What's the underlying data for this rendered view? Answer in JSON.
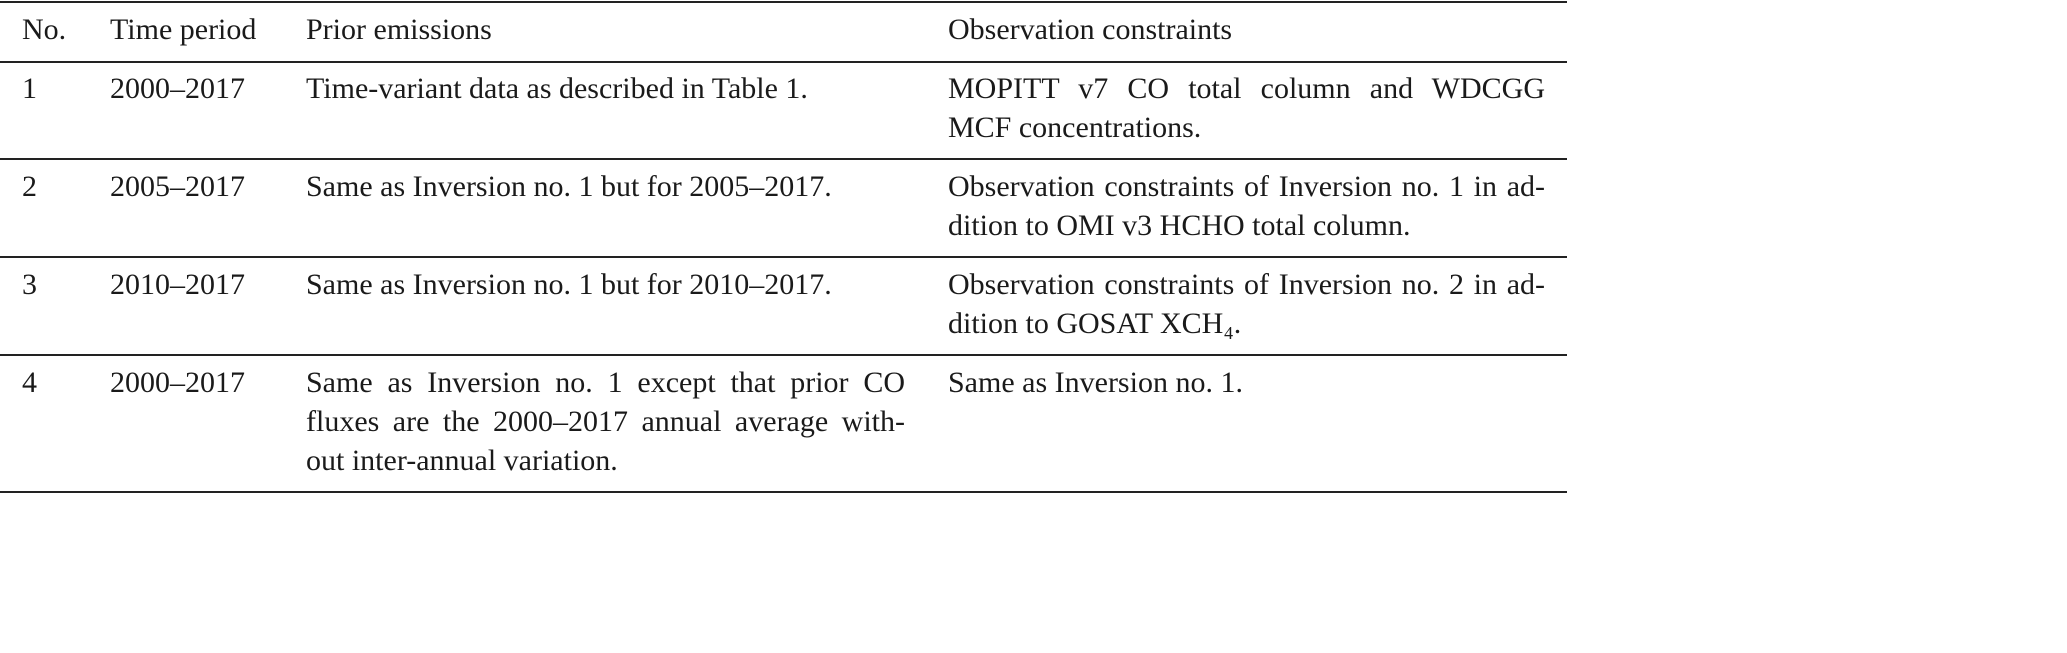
{
  "table": {
    "header": [
      "No.",
      "Time period",
      "Prior emissions",
      "Observation constraints"
    ],
    "rows": [
      [
        [
          "1"
        ],
        [
          "2000–2017"
        ],
        [
          "Time-variant data as described in Table 1."
        ],
        [
          "MOPITT v7 CO total column and WDCGG",
          "MCF concentrations."
        ]
      ],
      [
        [
          "2"
        ],
        [
          "2005–2017"
        ],
        [
          "Same as Inversion no. 1 but for 2005–2017."
        ],
        [
          "Observation constraints of Inversion no. 1 in ad-",
          "dition to OMI v3 HCHO total column."
        ]
      ],
      [
        [
          "3"
        ],
        [
          "2010–2017"
        ],
        [
          "Same as Inversion no. 1 but for 2010–2017."
        ],
        [
          "Observation constraints of Inversion no. 2 in ad-",
          "dition to GOSAT XCH₄."
        ]
      ],
      [
        [
          "4"
        ],
        [
          "2000–2017"
        ],
        [
          "Same as Inversion no. 1 except that prior CO",
          "fluxes are the 2000–2017 annual average with-",
          "out inter-annual variation."
        ],
        [
          "Same as Inversion no. 1."
        ]
      ]
    ]
  }
}
